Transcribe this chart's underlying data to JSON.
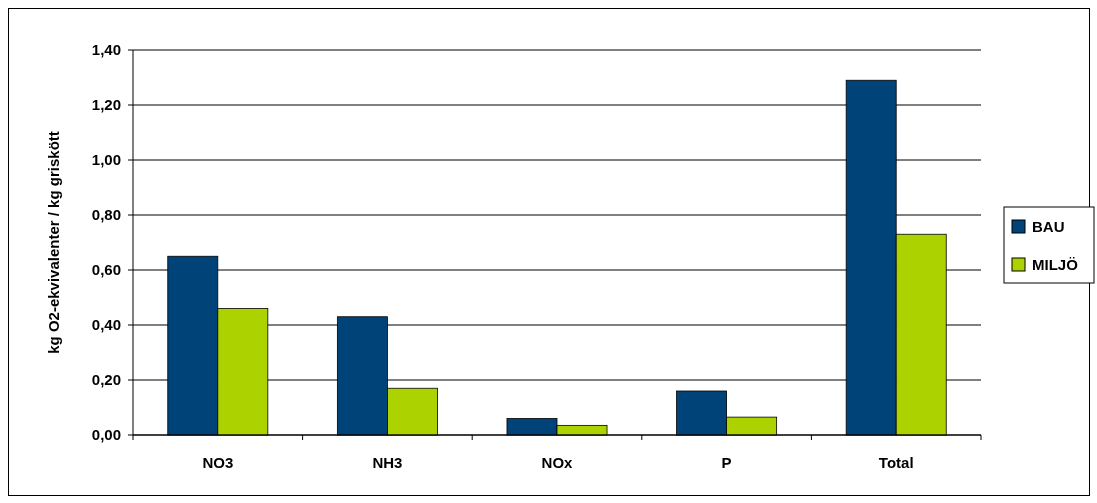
{
  "chart_data": {
    "type": "bar",
    "ylabel": "kg O2-ekvivalenter / kg griskött",
    "categories": [
      "NO3",
      "NH3",
      "NOx",
      "P",
      "Total"
    ],
    "series": [
      {
        "name": "BAU",
        "color": "#004379",
        "values": [
          0.65,
          0.43,
          0.06,
          0.16,
          1.29
        ]
      },
      {
        "name": "MILJÖ",
        "color": "#acd300",
        "values": [
          0.46,
          0.17,
          0.035,
          0.065,
          0.73
        ]
      }
    ],
    "ylim": [
      0,
      1.4
    ],
    "yticks": [
      {
        "value": 0,
        "label": "0,00"
      },
      {
        "value": 0.2,
        "label": "0,20"
      },
      {
        "value": 0.4,
        "label": "0,40"
      },
      {
        "value": 0.6,
        "label": "0,60"
      },
      {
        "value": 0.8,
        "label": "0,80"
      },
      {
        "value": 1,
        "label": "1,00"
      },
      {
        "value": 1.2,
        "label": "1,20"
      },
      {
        "value": 1.4,
        "label": "1,40"
      }
    ],
    "grid": "y",
    "legend": "right"
  }
}
